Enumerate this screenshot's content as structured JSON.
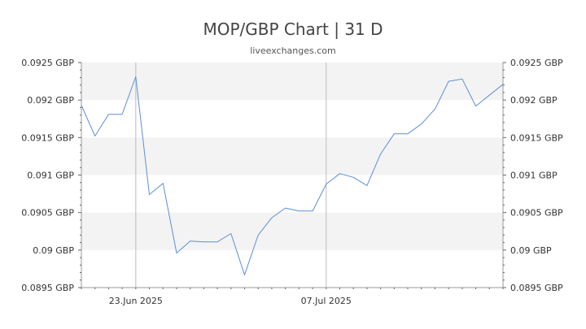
{
  "title": "MOP/GBP Chart | 31 D",
  "subtitle": "liveexchanges.com",
  "colors": {
    "line": "#5b8fd6",
    "band": "#f3f3f3",
    "vline": "#bbbbbb",
    "axis": "#999999"
  },
  "chart_data": {
    "type": "line",
    "title": "MOP/GBP Chart | 31 D",
    "subtitle": "liveexchanges.com",
    "xlabel": "",
    "ylabel": "",
    "ylim": [
      0.0895,
      0.0925
    ],
    "y_ticks": [
      {
        "value": 0.0925,
        "label": "0.0925 GBP"
      },
      {
        "value": 0.092,
        "label": "0.092 GBP"
      },
      {
        "value": 0.0915,
        "label": "0.0915 GBP"
      },
      {
        "value": 0.091,
        "label": "0.091 GBP"
      },
      {
        "value": 0.0905,
        "label": "0.0905 GBP"
      },
      {
        "value": 0.09,
        "label": "0.09 GBP"
      },
      {
        "value": 0.0895,
        "label": "0.0895 GBP"
      }
    ],
    "x_ticks": [
      {
        "date": "2025-06-23",
        "label": "23.Jun 2025"
      },
      {
        "date": "2025-07-07",
        "label": "07.Jul 2025"
      }
    ],
    "x_range": [
      "2025-06-19",
      "2025-07-20"
    ],
    "grid": "alternating horizontal bands",
    "series": [
      {
        "points": [
          {
            "x": "2025-06-19",
            "y": 0.09193
          },
          {
            "x": "2025-06-20",
            "y": 0.09152
          },
          {
            "x": "2025-06-21",
            "y": 0.09181
          },
          {
            "x": "2025-06-22",
            "y": 0.09181
          },
          {
            "x": "2025-06-23",
            "y": 0.09231
          },
          {
            "x": "2025-06-24",
            "y": 0.09074
          },
          {
            "x": "2025-06-25",
            "y": 0.09089
          },
          {
            "x": "2025-06-26",
            "y": 0.08996
          },
          {
            "x": "2025-06-27",
            "y": 0.09012
          },
          {
            "x": "2025-06-28",
            "y": 0.09011
          },
          {
            "x": "2025-06-29",
            "y": 0.09011
          },
          {
            "x": "2025-06-30",
            "y": 0.09022
          },
          {
            "x": "2025-07-01",
            "y": 0.08967
          },
          {
            "x": "2025-07-02",
            "y": 0.0902
          },
          {
            "x": "2025-07-03",
            "y": 0.09043
          },
          {
            "x": "2025-07-04",
            "y": 0.09056
          },
          {
            "x": "2025-07-05",
            "y": 0.09052
          },
          {
            "x": "2025-07-06",
            "y": 0.09052
          },
          {
            "x": "2025-07-07",
            "y": 0.09088
          },
          {
            "x": "2025-07-08",
            "y": 0.09102
          },
          {
            "x": "2025-07-09",
            "y": 0.09097
          },
          {
            "x": "2025-07-10",
            "y": 0.09086
          },
          {
            "x": "2025-07-11",
            "y": 0.09128
          },
          {
            "x": "2025-07-12",
            "y": 0.09155
          },
          {
            "x": "2025-07-13",
            "y": 0.09155
          },
          {
            "x": "2025-07-14",
            "y": 0.09168
          },
          {
            "x": "2025-07-15",
            "y": 0.09188
          },
          {
            "x": "2025-07-16",
            "y": 0.09225
          },
          {
            "x": "2025-07-17",
            "y": 0.09228
          },
          {
            "x": "2025-07-18",
            "y": 0.09192
          },
          {
            "x": "2025-07-20",
            "y": 0.09221
          }
        ]
      }
    ]
  }
}
